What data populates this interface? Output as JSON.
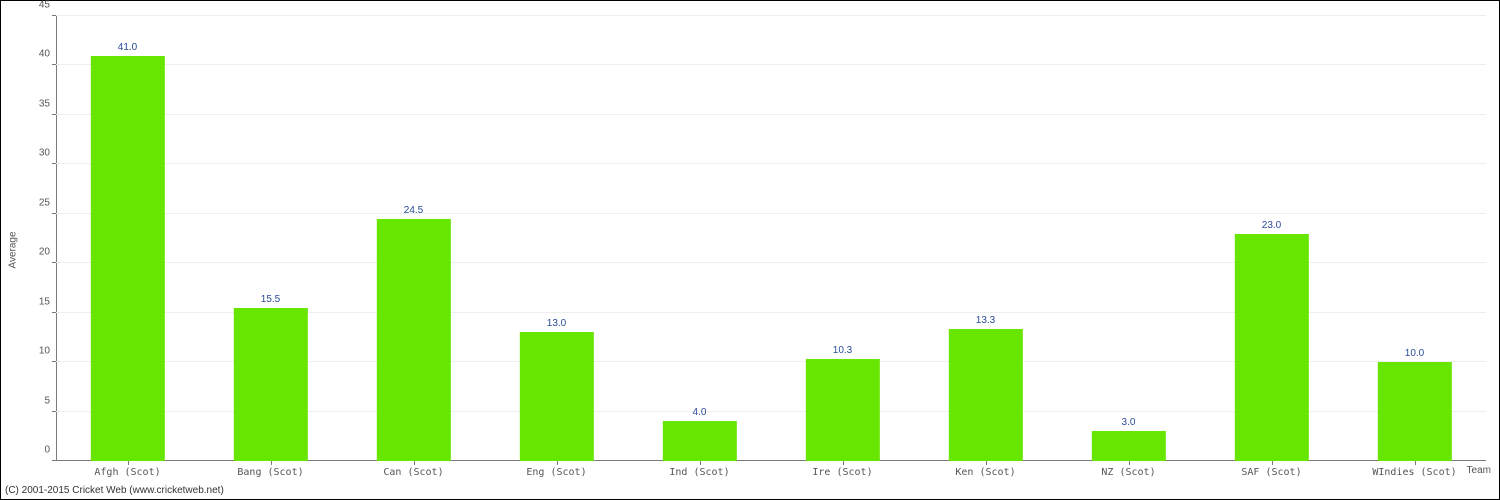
{
  "chart": {
    "type": "bar",
    "ylabel": "Average",
    "xlabel": "Team",
    "ylim": [
      0,
      45
    ],
    "ytick_step": 5,
    "categories": [
      "Afgh (Scot)",
      "Bang (Scot)",
      "Can (Scot)",
      "Eng (Scot)",
      "Ind (Scot)",
      "Ire (Scot)",
      "Ken (Scot)",
      "NZ (Scot)",
      "SAF (Scot)",
      "WIndies (Scot)"
    ],
    "values": [
      41.0,
      15.5,
      24.5,
      13.0,
      4.0,
      10.3,
      13.3,
      3.0,
      23.0,
      10.0
    ],
    "value_labels": [
      "41.0",
      "15.5",
      "24.5",
      "13.0",
      "4.0",
      "10.3",
      "13.3",
      "3.0",
      "23.0",
      "10.0"
    ],
    "bar_color": "#66e600",
    "bar_width_ratio": 0.52,
    "background_color": "#ffffff",
    "grid_color": "#eeeeee",
    "axis_color": "#7a7a7a",
    "tick_font_color": "#555555",
    "tick_font_size": 10,
    "value_label_color": "#2a4a9a",
    "value_label_fontsize": 10,
    "x_tick_font_family": "monospace"
  },
  "footer": {
    "copyright": "(C) 2001-2015 Cricket Web (www.cricketweb.net)"
  }
}
